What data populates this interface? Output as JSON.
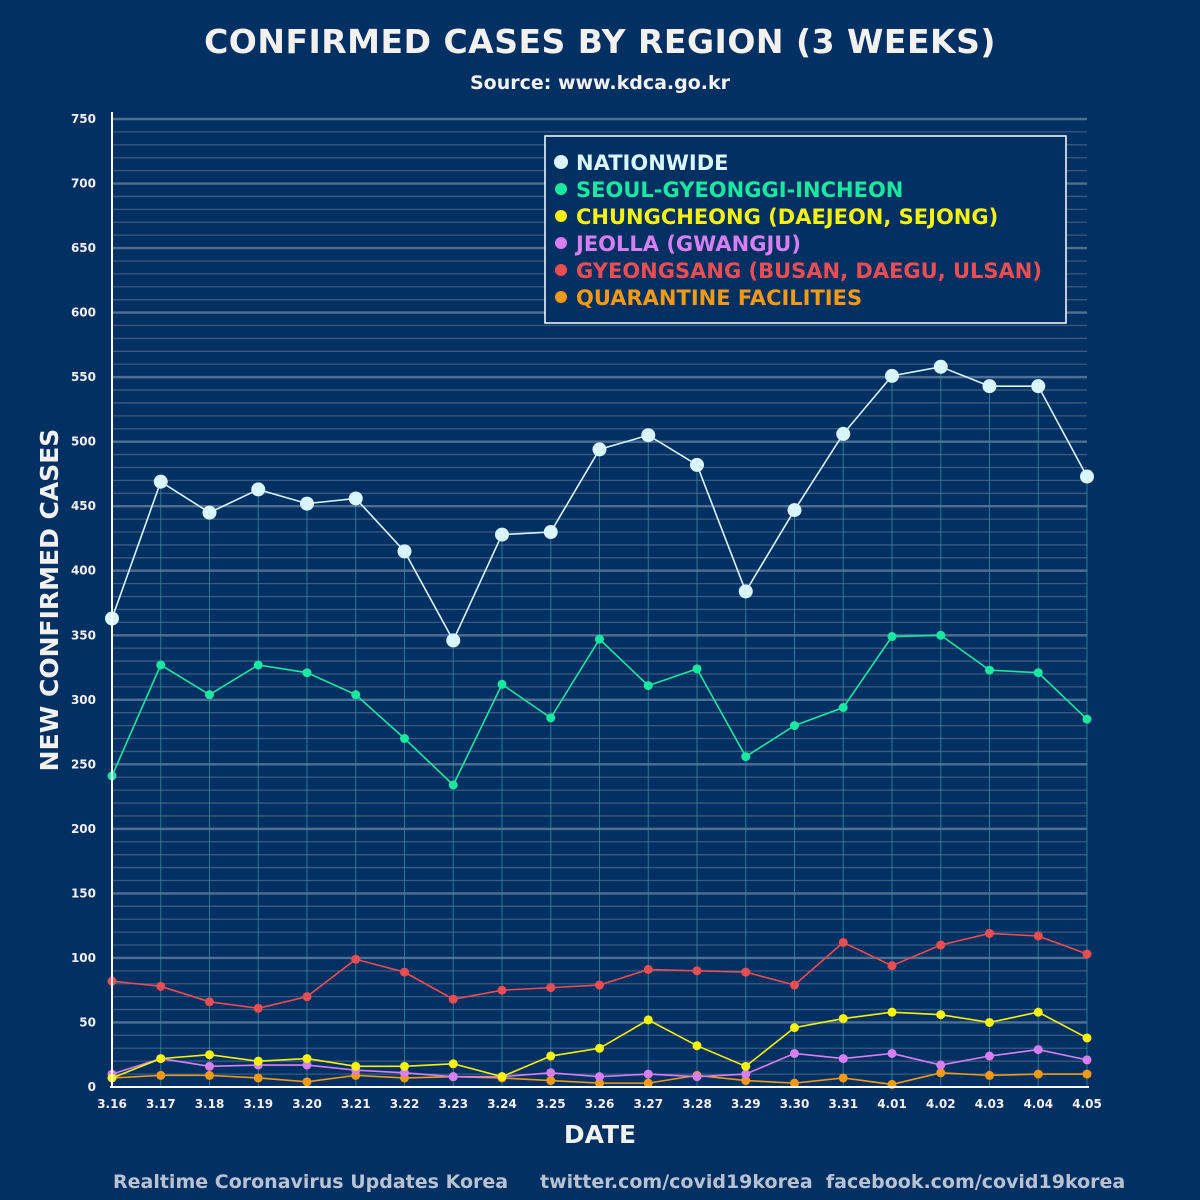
{
  "header": {
    "title": "CONFIRMED CASES BY REGION (3 WEEKS)",
    "subtitle": "Source: www.kdca.go.kr"
  },
  "footer": {
    "left": "Realtime Coronavirus Updates Korea",
    "right": "twitter.com/covid19korea  facebook.com/covid19korea"
  },
  "chart_data": {
    "type": "line",
    "title": "CONFIRMED CASES BY REGION (3 WEEKS)",
    "subtitle": "Source: www.kdca.go.kr",
    "xlabel": "DATE",
    "ylabel": "NEW CONFIRMED CASES",
    "ylim": [
      0,
      750
    ],
    "yticks": [
      0,
      50,
      100,
      150,
      200,
      250,
      300,
      350,
      400,
      450,
      500,
      550,
      600,
      650,
      700,
      750
    ],
    "grid": true,
    "legend_position": "top-right",
    "background": "#033063",
    "categories": [
      "3.16",
      "3.17",
      "3.18",
      "3.19",
      "3.20",
      "3.21",
      "3.22",
      "3.23",
      "3.24",
      "3.25",
      "3.26",
      "3.27",
      "3.28",
      "3.29",
      "3.30",
      "3.31",
      "4.01",
      "4.02",
      "4.03",
      "4.04",
      "4.05"
    ],
    "series": [
      {
        "name": "NATIONWIDE",
        "color": "#d8f6fb",
        "values": [
          363,
          469,
          445,
          463,
          452,
          456,
          415,
          346,
          428,
          430,
          494,
          505,
          482,
          384,
          447,
          506,
          551,
          558,
          543,
          543,
          473
        ]
      },
      {
        "name": "SEOUL-GYEONGGI-INCHEON",
        "color": "#19e8a0",
        "values": [
          241,
          327,
          304,
          327,
          321,
          304,
          270,
          234,
          312,
          286,
          347,
          311,
          324,
          256,
          280,
          294,
          349,
          350,
          323,
          321,
          285
        ]
      },
      {
        "name": "CHUNGCHEONG (DAEJEON, SEJONG)",
        "color": "#f6f20c",
        "values": [
          7,
          22,
          25,
          20,
          22,
          16,
          16,
          18,
          8,
          24,
          30,
          52,
          32,
          16,
          46,
          53,
          58,
          56,
          50,
          58,
          38
        ]
      },
      {
        "name": "JEOLLA (GWANGJU)",
        "color": "#d77ff0",
        "values": [
          10,
          22,
          16,
          17,
          17,
          13,
          11,
          8,
          8,
          11,
          8,
          10,
          8,
          10,
          26,
          22,
          26,
          17,
          24,
          29,
          21
        ]
      },
      {
        "name": "GYEONGSANG (BUSAN, DAEGU, ULSAN)",
        "color": "#ea4d52",
        "values": [
          82,
          78,
          66,
          61,
          70,
          99,
          89,
          68,
          75,
          77,
          79,
          91,
          90,
          89,
          79,
          112,
          94,
          110,
          119,
          117,
          103
        ]
      },
      {
        "name": "QUARANTINE FACILITIES",
        "color": "#f39a13",
        "values": [
          7,
          9,
          9,
          7,
          4,
          9,
          7,
          8,
          7,
          5,
          3,
          3,
          9,
          5,
          3,
          7,
          2,
          11,
          9,
          10,
          10
        ]
      }
    ]
  }
}
